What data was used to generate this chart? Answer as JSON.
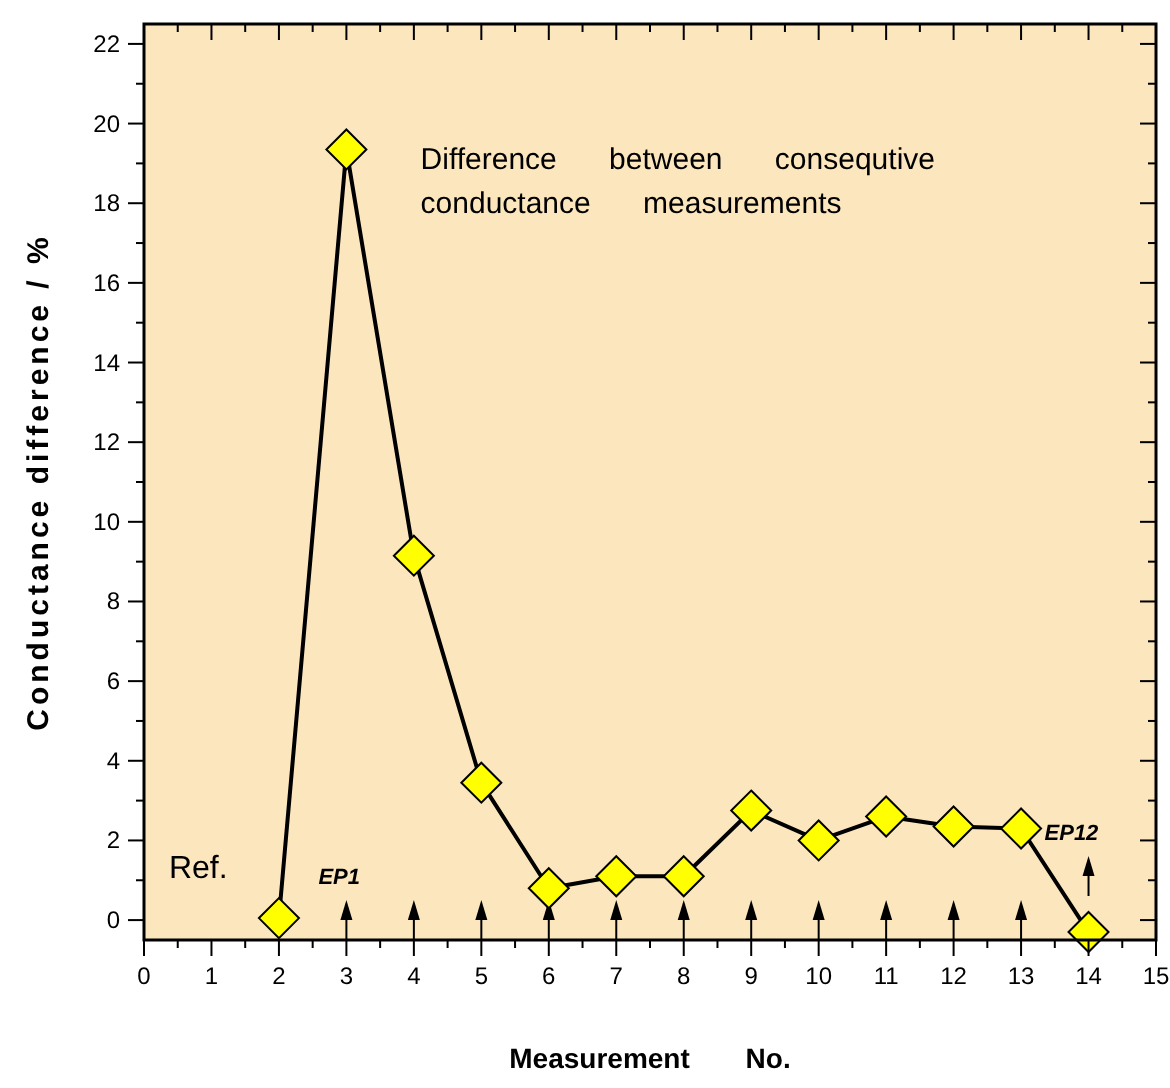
{
  "chart_data": {
    "type": "line",
    "xlabel": "Measurement No.",
    "ylabel": "Conductance difference / %",
    "x": [
      2,
      3,
      4,
      5,
      6,
      7,
      8,
      9,
      10,
      11,
      12,
      13,
      14
    ],
    "series": [
      {
        "color": "#000000",
        "values": [
          0.05,
          19.35,
          9.15,
          3.45,
          0.8,
          1.1,
          1.1,
          2.75,
          2.0,
          2.6,
          2.35,
          2.3,
          -0.3
        ]
      }
    ],
    "xlim": [
      0,
      15
    ],
    "xticks": [
      0,
      1,
      2,
      3,
      4,
      5,
      6,
      7,
      8,
      9,
      10,
      11,
      12,
      13,
      14,
      15
    ],
    "ylim": [
      -0.5,
      22.5
    ],
    "yticks": [
      0,
      2,
      4,
      6,
      8,
      10,
      12,
      14,
      16,
      18,
      20,
      22
    ],
    "marker": "diamond",
    "line_style": "solid",
    "grid": false,
    "annotations": [
      "Difference between consequtive conductance measurements",
      {
        "text": "Ref.",
        "x": 2,
        "y": 0.05
      },
      "EP1",
      "EP12"
    ]
  }
}
